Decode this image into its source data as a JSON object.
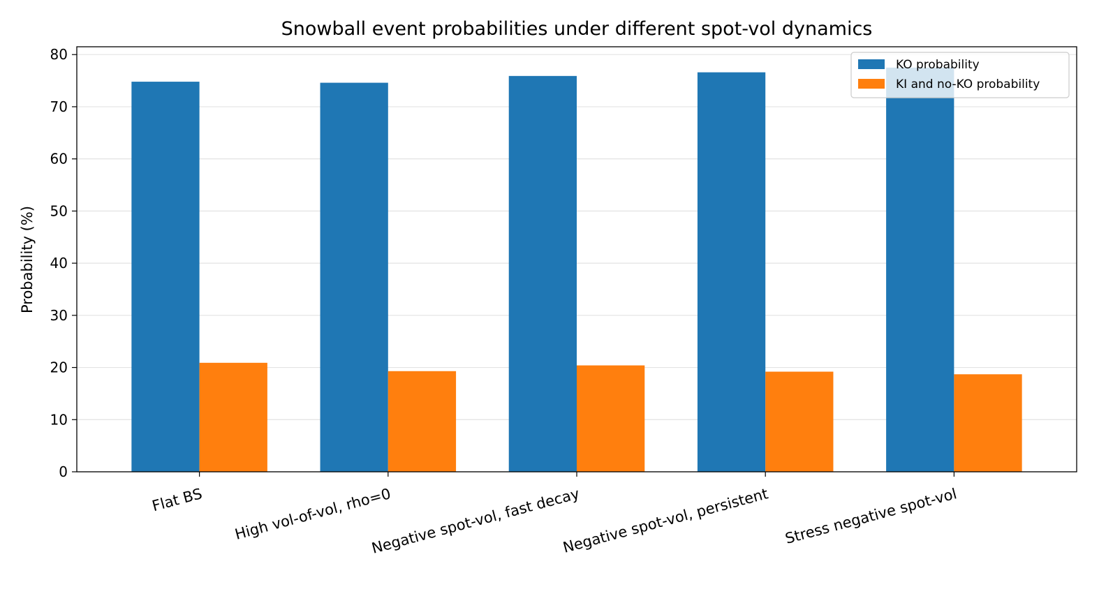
{
  "chart_data": {
    "type": "bar",
    "title": "Snowball event probabilities under different spot-vol dynamics",
    "xlabel": "",
    "ylabel": "Probability (%)",
    "ylim": [
      0,
      81.5
    ],
    "yticks": [
      0,
      10,
      20,
      30,
      40,
      50,
      60,
      70,
      80
    ],
    "grid": "y",
    "legend_position": "top-right",
    "categories": [
      "Flat BS",
      "High vol-of-vol, rho=0",
      "Negative spot-vol, fast decay",
      "Negative spot-vol, persistent",
      "Stress negative spot-vol"
    ],
    "series": [
      {
        "name": "KO probability",
        "color": "#1f77b4",
        "values": [
          74.8,
          74.6,
          75.9,
          76.6,
          77.5
        ]
      },
      {
        "name": "KI and no-KO probability",
        "color": "#ff7f0e",
        "values": [
          20.9,
          19.3,
          20.4,
          19.2,
          18.7
        ]
      }
    ]
  }
}
